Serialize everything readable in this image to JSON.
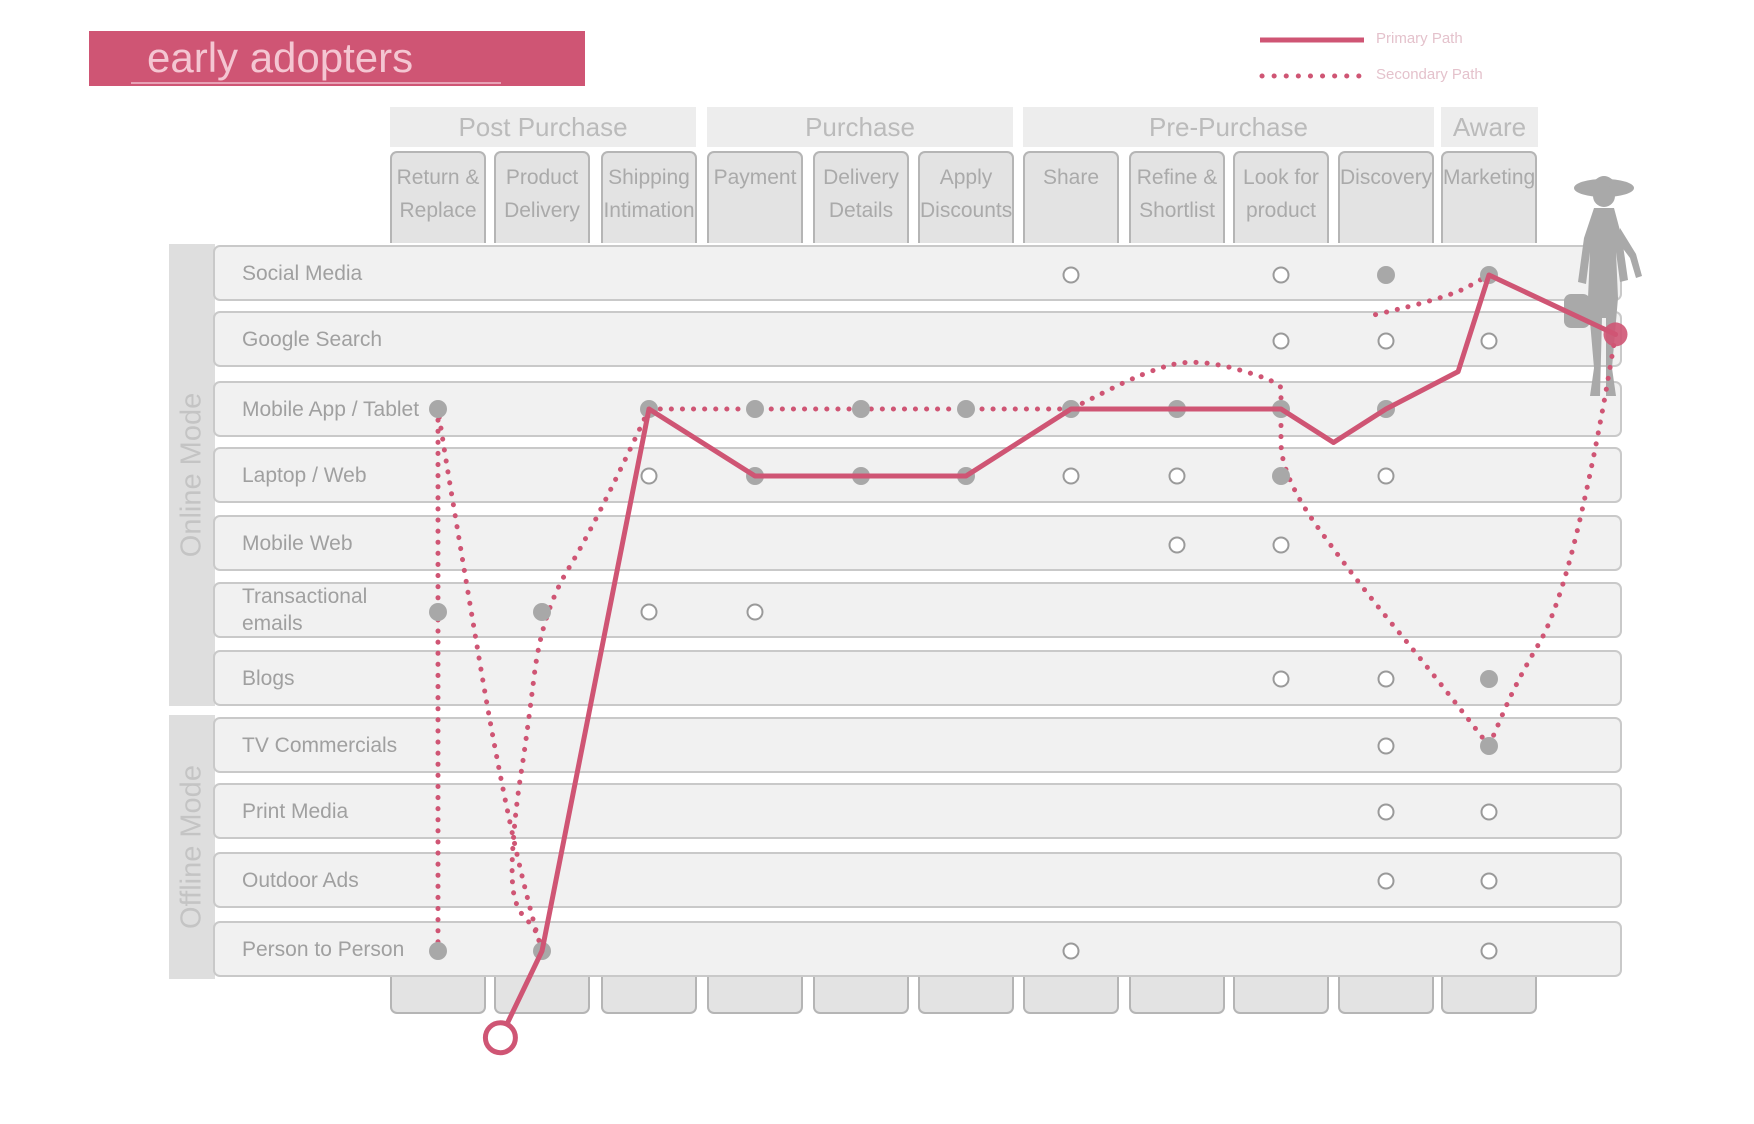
{
  "title": "early adopters",
  "legend": {
    "primary_label": "Primary Path",
    "secondary_label": "Secondary Path"
  },
  "colors": {
    "accent": "#cf5574",
    "row_fill": "#f1f1f1",
    "step_fill": "#e3e3e3",
    "dot_gray": "#a8a8a8"
  },
  "stages": [
    "Post Purchase",
    "Purchase",
    "Pre-Purchase",
    "Aware"
  ],
  "steps": [
    "Return & Replace",
    "Product Delivery",
    "Shipping Intimation",
    "Payment",
    "Delivery Details",
    "Apply Discounts",
    "Share",
    "Refine & Shortlist",
    "Look for product",
    "Discovery",
    "Marketing"
  ],
  "modes": [
    "Online Mode",
    "Offline Mode"
  ],
  "channels": [
    "Social Media",
    "Google Search",
    "Mobile App / Tablet",
    "Laptop / Web",
    "Mobile Web",
    "Transactional emails",
    "Blogs",
    "TV Commercials",
    "Print Media",
    "Outdoor Ads",
    "Person to Person"
  ],
  "touchpoints": {
    "open": [
      [
        6,
        0
      ],
      [
        8,
        0
      ],
      [
        8,
        1
      ],
      [
        9,
        1
      ],
      [
        10,
        1
      ],
      [
        2,
        3
      ],
      [
        6,
        3
      ],
      [
        7,
        3
      ],
      [
        9,
        3
      ],
      [
        7,
        4
      ],
      [
        8,
        4
      ],
      [
        2,
        5
      ],
      [
        3,
        5
      ],
      [
        8,
        6
      ],
      [
        9,
        6
      ],
      [
        9,
        7
      ],
      [
        9,
        8
      ],
      [
        10,
        8
      ],
      [
        9,
        9
      ],
      [
        10,
        9
      ],
      [
        6,
        10
      ],
      [
        10,
        10
      ]
    ],
    "filled": [
      [
        9,
        0
      ],
      [
        10,
        0
      ],
      [
        0,
        2
      ],
      [
        2,
        2
      ],
      [
        3,
        2
      ],
      [
        4,
        2
      ],
      [
        5,
        2
      ],
      [
        6,
        2
      ],
      [
        7,
        2
      ],
      [
        8,
        2
      ],
      [
        9,
        2
      ],
      [
        3,
        3
      ],
      [
        4,
        3
      ],
      [
        5,
        3
      ],
      [
        8,
        3
      ],
      [
        0,
        5
      ],
      [
        1,
        5
      ],
      [
        10,
        6
      ],
      [
        10,
        7
      ],
      [
        0,
        10
      ],
      [
        1,
        10
      ]
    ]
  },
  "primary_path": [
    [
      0.6,
      11.7
    ],
    [
      1,
      10
    ],
    [
      2,
      2
    ],
    [
      3,
      3
    ],
    [
      4,
      3
    ],
    [
      5,
      3
    ],
    [
      6,
      2
    ],
    [
      7,
      2
    ],
    [
      8,
      2
    ],
    [
      8.5,
      2.5
    ],
    [
      9,
      2
    ],
    [
      9.7,
      1.45
    ],
    [
      10,
      0
    ],
    [
      11.1,
      0.9
    ]
  ],
  "secondary_paths": [
    [
      [
        11.1,
        0.9
      ],
      [
        10.95,
        2.5
      ],
      [
        10.6,
        5
      ],
      [
        10.25,
        6
      ],
      [
        10,
        7
      ]
    ],
    [
      [
        10,
        7
      ],
      [
        9.5,
        6
      ],
      [
        8.7,
        4.5
      ],
      [
        8,
        3
      ],
      [
        8,
        2
      ]
    ],
    [
      [
        8,
        2
      ],
      [
        8,
        1.8
      ],
      [
        8,
        1.6
      ],
      [
        7.2,
        1.25
      ],
      [
        6.7,
        1.45
      ],
      [
        6,
        2
      ]
    ],
    [
      [
        6,
        2
      ],
      [
        5,
        2
      ],
      [
        4,
        2
      ],
      [
        3,
        2
      ],
      [
        2,
        2
      ]
    ],
    [
      [
        2,
        2
      ],
      [
        1.5,
        3.7
      ],
      [
        1,
        5
      ],
      [
        0.85,
        6.9
      ],
      [
        0.75,
        7.9
      ],
      [
        0.7,
        8.9
      ],
      [
        0.75,
        9.4
      ],
      [
        0.95,
        9.7
      ],
      [
        1,
        10
      ]
    ],
    [
      [
        1,
        10
      ],
      [
        0.7,
        8.5
      ],
      [
        0.1,
        3
      ],
      [
        0,
        2
      ]
    ],
    [
      [
        0,
        2
      ],
      [
        0,
        10
      ]
    ],
    [
      [
        8.9,
        0.6
      ],
      [
        9.6,
        0.35
      ],
      [
        10,
        0
      ]
    ]
  ],
  "end_points": {
    "persona_marker": [
      11.1,
      0.9
    ],
    "start_marker": [
      0.6,
      11.7
    ]
  }
}
